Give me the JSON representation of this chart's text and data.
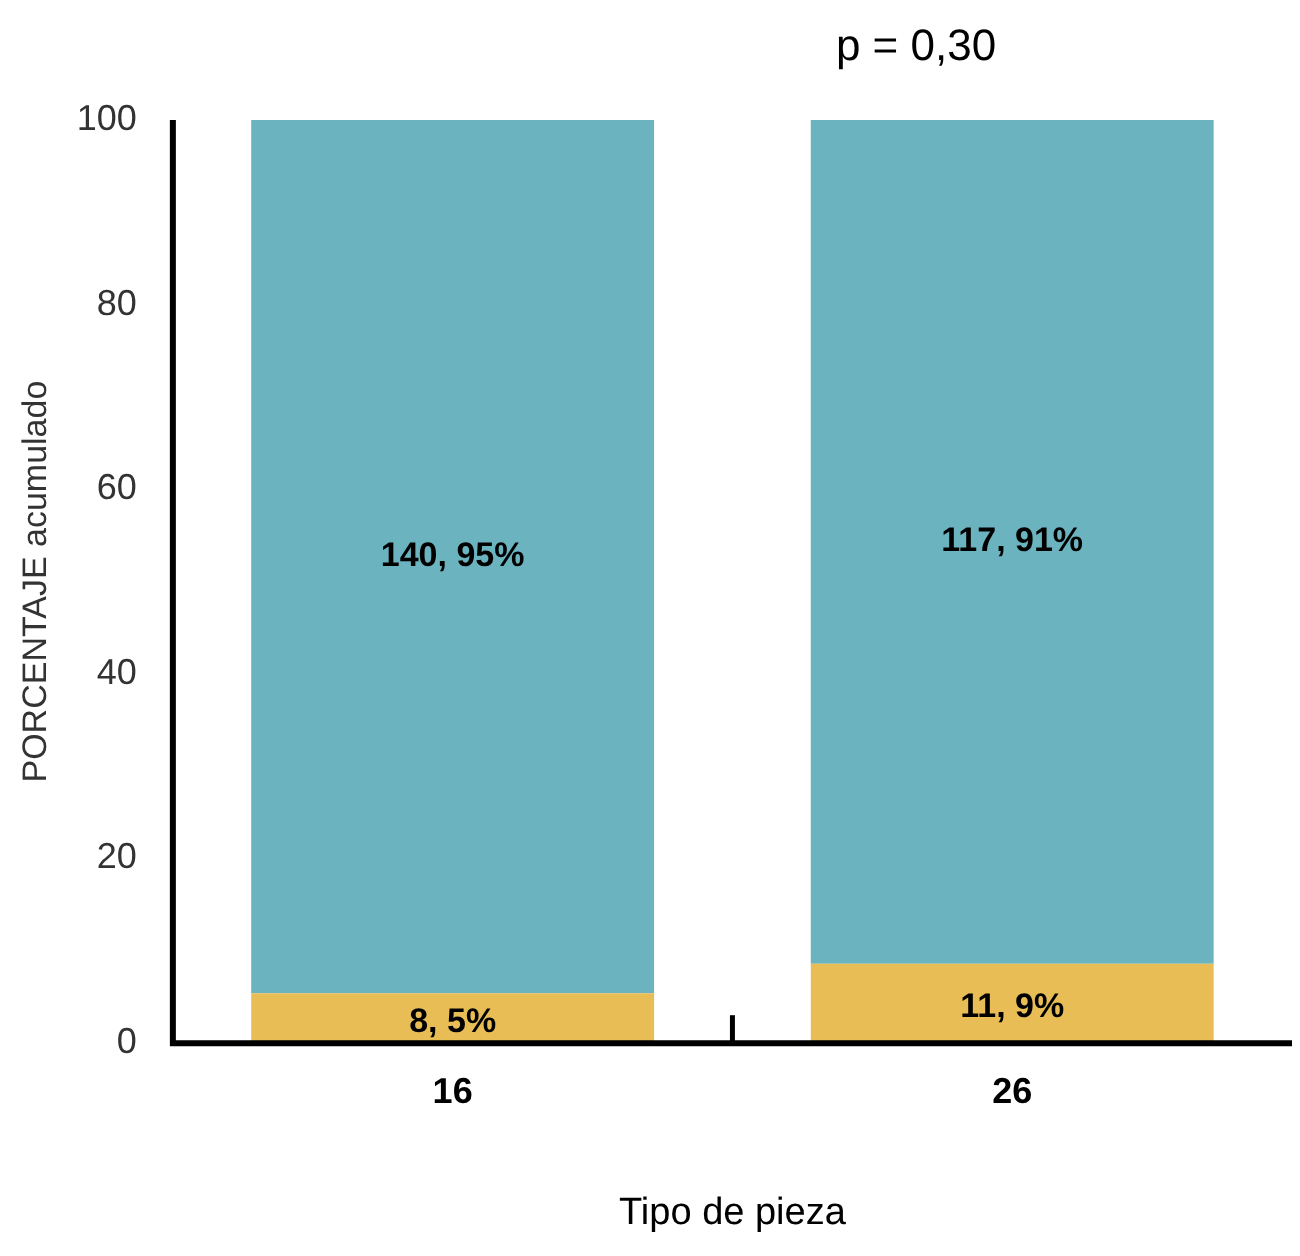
{
  "chart_data": {
    "type": "bar",
    "stacked": true,
    "categories": [
      "16",
      "26"
    ],
    "series": [
      {
        "color": "#e8bd56",
        "values": [
          5.4,
          8.6
        ],
        "value_labels": [
          "8, 5%",
          "11, 9%"
        ]
      },
      {
        "color": "#6bb3bf",
        "values": [
          94.6,
          91.4
        ],
        "value_labels": [
          "140, 95%",
          "117, 91%"
        ]
      }
    ],
    "ylim": [
      0,
      100
    ],
    "yticks": [
      0,
      20,
      40,
      60,
      80,
      100
    ],
    "ylabel": "PORCENTAJE acumulado",
    "xlabel": "Tipo de pieza",
    "grid": false,
    "legend": false,
    "annotations": [
      "p = 0,30"
    ]
  }
}
